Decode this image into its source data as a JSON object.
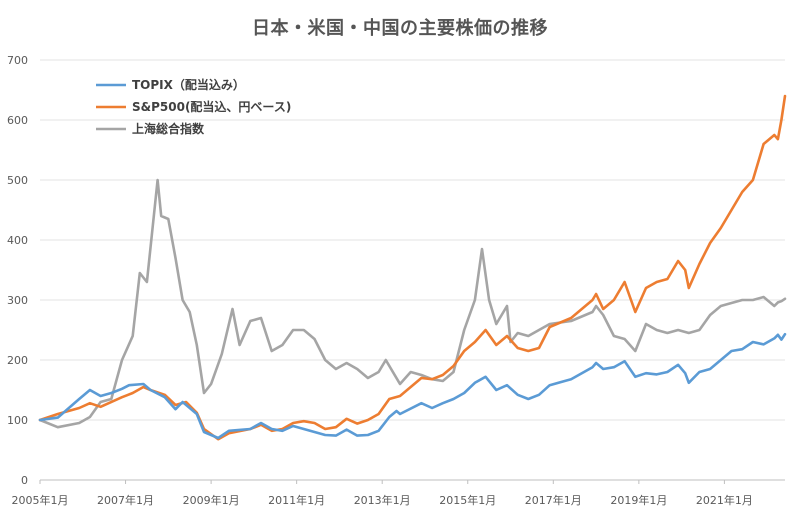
{
  "chart_data": {
    "type": "line",
    "title": "日本・米国・中国の主要株価の推移",
    "xlabel": "",
    "ylabel": "",
    "ylim": [
      0,
      700
    ],
    "yticks": [
      "0",
      "100",
      "200",
      "300",
      "400",
      "500",
      "600",
      "700"
    ],
    "xlim": [
      "2005-01",
      "2022-06"
    ],
    "xticks": [
      "2005年1月",
      "2007年1月",
      "2009年1月",
      "2011年1月",
      "2013年1月",
      "2015年1月",
      "2017年1月",
      "2019年1月",
      "2021年1月"
    ],
    "grid": true,
    "legend": "top-left",
    "series": [
      {
        "name": "TOPIX（配当込み）",
        "color": "#5B9BD5",
        "points": [
          [
            "2005-01",
            100
          ],
          [
            "2005-06",
            104
          ],
          [
            "2005-12",
            135
          ],
          [
            "2006-03",
            150
          ],
          [
            "2006-06",
            140
          ],
          [
            "2006-09",
            145
          ],
          [
            "2006-12",
            152
          ],
          [
            "2007-02",
            158
          ],
          [
            "2007-06",
            160
          ],
          [
            "2007-08",
            150
          ],
          [
            "2007-12",
            138
          ],
          [
            "2008-03",
            118
          ],
          [
            "2008-05",
            130
          ],
          [
            "2008-09",
            110
          ],
          [
            "2008-11",
            80
          ],
          [
            "2009-03",
            70
          ],
          [
            "2009-06",
            82
          ],
          [
            "2009-12",
            85
          ],
          [
            "2010-03",
            95
          ],
          [
            "2010-06",
            85
          ],
          [
            "2010-09",
            82
          ],
          [
            "2010-12",
            90
          ],
          [
            "2011-03",
            85
          ],
          [
            "2011-09",
            75
          ],
          [
            "2011-12",
            74
          ],
          [
            "2012-03",
            84
          ],
          [
            "2012-06",
            74
          ],
          [
            "2012-09",
            75
          ],
          [
            "2012-12",
            82
          ],
          [
            "2013-03",
            105
          ],
          [
            "2013-05",
            115
          ],
          [
            "2013-06",
            110
          ],
          [
            "2013-12",
            128
          ],
          [
            "2014-03",
            120
          ],
          [
            "2014-06",
            128
          ],
          [
            "2014-09",
            135
          ],
          [
            "2014-12",
            145
          ],
          [
            "2015-03",
            162
          ],
          [
            "2015-06",
            172
          ],
          [
            "2015-09",
            150
          ],
          [
            "2015-12",
            158
          ],
          [
            "2016-03",
            142
          ],
          [
            "2016-06",
            135
          ],
          [
            "2016-09",
            142
          ],
          [
            "2016-12",
            158
          ],
          [
            "2017-06",
            168
          ],
          [
            "2017-12",
            188
          ],
          [
            "2018-01",
            195
          ],
          [
            "2018-03",
            185
          ],
          [
            "2018-06",
            188
          ],
          [
            "2018-09",
            198
          ],
          [
            "2018-12",
            172
          ],
          [
            "2019-03",
            178
          ],
          [
            "2019-06",
            176
          ],
          [
            "2019-09",
            180
          ],
          [
            "2019-12",
            192
          ],
          [
            "2020-02",
            178
          ],
          [
            "2020-03",
            162
          ],
          [
            "2020-06",
            180
          ],
          [
            "2020-09",
            185
          ],
          [
            "2020-12",
            200
          ],
          [
            "2021-03",
            215
          ],
          [
            "2021-06",
            218
          ],
          [
            "2021-09",
            230
          ],
          [
            "2021-12",
            226
          ],
          [
            "2022-03",
            236
          ],
          [
            "2022-04",
            242
          ],
          [
            "2022-05",
            234
          ],
          [
            "2022-06",
            243
          ]
        ]
      },
      {
        "name": "S&P500(配当込、円ベース)",
        "color": "#ED7D31",
        "points": [
          [
            "2005-01",
            100
          ],
          [
            "2005-06",
            110
          ],
          [
            "2005-12",
            120
          ],
          [
            "2006-03",
            128
          ],
          [
            "2006-06",
            122
          ],
          [
            "2006-12",
            138
          ],
          [
            "2007-03",
            145
          ],
          [
            "2007-06",
            155
          ],
          [
            "2007-08",
            150
          ],
          [
            "2007-12",
            142
          ],
          [
            "2008-03",
            125
          ],
          [
            "2008-06",
            130
          ],
          [
            "2008-09",
            112
          ],
          [
            "2008-11",
            85
          ],
          [
            "2009-03",
            68
          ],
          [
            "2009-06",
            78
          ],
          [
            "2009-12",
            85
          ],
          [
            "2010-03",
            92
          ],
          [
            "2010-06",
            82
          ],
          [
            "2010-09",
            85
          ],
          [
            "2010-12",
            95
          ],
          [
            "2011-03",
            98
          ],
          [
            "2011-06",
            95
          ],
          [
            "2011-09",
            85
          ],
          [
            "2011-12",
            88
          ],
          [
            "2012-03",
            102
          ],
          [
            "2012-06",
            94
          ],
          [
            "2012-09",
            100
          ],
          [
            "2012-12",
            110
          ],
          [
            "2013-03",
            135
          ],
          [
            "2013-06",
            140
          ],
          [
            "2013-12",
            170
          ],
          [
            "2014-03",
            168
          ],
          [
            "2014-06",
            175
          ],
          [
            "2014-09",
            190
          ],
          [
            "2014-12",
            215
          ],
          [
            "2015-03",
            230
          ],
          [
            "2015-06",
            250
          ],
          [
            "2015-09",
            225
          ],
          [
            "2015-12",
            240
          ],
          [
            "2016-03",
            220
          ],
          [
            "2016-06",
            215
          ],
          [
            "2016-09",
            220
          ],
          [
            "2016-12",
            255
          ],
          [
            "2017-06",
            270
          ],
          [
            "2017-12",
            300
          ],
          [
            "2018-01",
            310
          ],
          [
            "2018-03",
            285
          ],
          [
            "2018-06",
            300
          ],
          [
            "2018-09",
            330
          ],
          [
            "2018-12",
            280
          ],
          [
            "2019-03",
            320
          ],
          [
            "2019-06",
            330
          ],
          [
            "2019-09",
            335
          ],
          [
            "2019-12",
            365
          ],
          [
            "2020-02",
            350
          ],
          [
            "2020-03",
            320
          ],
          [
            "2020-06",
            360
          ],
          [
            "2020-09",
            395
          ],
          [
            "2020-12",
            420
          ],
          [
            "2021-03",
            450
          ],
          [
            "2021-06",
            480
          ],
          [
            "2021-09",
            500
          ],
          [
            "2021-12",
            560
          ],
          [
            "2022-03",
            575
          ],
          [
            "2022-04",
            568
          ],
          [
            "2022-05",
            600
          ],
          [
            "2022-06",
            640
          ]
        ]
      },
      {
        "name": "上海総合指数",
        "color": "#A5A5A5",
        "points": [
          [
            "2005-01",
            100
          ],
          [
            "2005-06",
            88
          ],
          [
            "2005-12",
            95
          ],
          [
            "2006-03",
            105
          ],
          [
            "2006-06",
            130
          ],
          [
            "2006-09",
            135
          ],
          [
            "2006-12",
            200
          ],
          [
            "2007-03",
            240
          ],
          [
            "2007-05",
            345
          ],
          [
            "2007-07",
            330
          ],
          [
            "2007-10",
            500
          ],
          [
            "2007-11",
            440
          ],
          [
            "2008-01",
            435
          ],
          [
            "2008-03",
            370
          ],
          [
            "2008-05",
            300
          ],
          [
            "2008-07",
            280
          ],
          [
            "2008-09",
            225
          ],
          [
            "2008-11",
            145
          ],
          [
            "2009-01",
            160
          ],
          [
            "2009-04",
            210
          ],
          [
            "2009-07",
            285
          ],
          [
            "2009-09",
            225
          ],
          [
            "2009-12",
            265
          ],
          [
            "2010-03",
            270
          ],
          [
            "2010-06",
            215
          ],
          [
            "2010-09",
            225
          ],
          [
            "2010-12",
            250
          ],
          [
            "2011-03",
            250
          ],
          [
            "2011-06",
            235
          ],
          [
            "2011-09",
            200
          ],
          [
            "2011-12",
            185
          ],
          [
            "2012-03",
            195
          ],
          [
            "2012-06",
            185
          ],
          [
            "2012-09",
            170
          ],
          [
            "2012-12",
            180
          ],
          [
            "2013-02",
            200
          ],
          [
            "2013-06",
            160
          ],
          [
            "2013-09",
            180
          ],
          [
            "2013-12",
            175
          ],
          [
            "2014-03",
            168
          ],
          [
            "2014-06",
            165
          ],
          [
            "2014-09",
            180
          ],
          [
            "2014-12",
            250
          ],
          [
            "2015-03",
            300
          ],
          [
            "2015-05",
            385
          ],
          [
            "2015-07",
            300
          ],
          [
            "2015-09",
            260
          ],
          [
            "2015-12",
            290
          ],
          [
            "2016-01",
            230
          ],
          [
            "2016-03",
            245
          ],
          [
            "2016-06",
            240
          ],
          [
            "2016-09",
            250
          ],
          [
            "2016-12",
            260
          ],
          [
            "2017-06",
            265
          ],
          [
            "2017-12",
            280
          ],
          [
            "2018-01",
            290
          ],
          [
            "2018-03",
            275
          ],
          [
            "2018-06",
            240
          ],
          [
            "2018-09",
            235
          ],
          [
            "2018-12",
            215
          ],
          [
            "2019-03",
            260
          ],
          [
            "2019-06",
            250
          ],
          [
            "2019-09",
            245
          ],
          [
            "2019-12",
            250
          ],
          [
            "2020-03",
            245
          ],
          [
            "2020-06",
            250
          ],
          [
            "2020-09",
            275
          ],
          [
            "2020-12",
            290
          ],
          [
            "2021-03",
            295
          ],
          [
            "2021-06",
            300
          ],
          [
            "2021-09",
            300
          ],
          [
            "2021-12",
            305
          ],
          [
            "2022-03",
            290
          ],
          [
            "2022-04",
            296
          ],
          [
            "2022-05",
            298
          ],
          [
            "2022-06",
            302
          ]
        ]
      }
    ]
  }
}
